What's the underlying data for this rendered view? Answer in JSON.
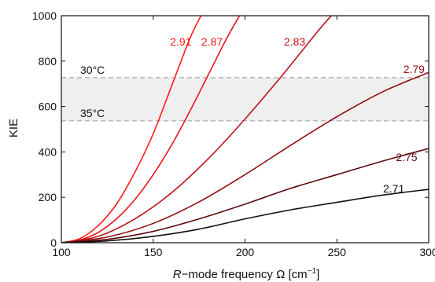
{
  "chart_data": {
    "type": "line",
    "xlabel_prefix": "R",
    "xlabel_main": "−mode frequency Ω [cm",
    "xlabel_sup": "−1",
    "xlabel_end": "]",
    "ylabel": "KIE",
    "xlim": [
      100,
      300
    ],
    "ylim": [
      0,
      1000
    ],
    "xticks": [
      100,
      150,
      200,
      250,
      300
    ],
    "yticks": [
      0,
      200,
      400,
      600,
      800,
      1000
    ],
    "grid": false,
    "band": {
      "from": 537,
      "to": 727,
      "color": "#efefef",
      "line_color": "#a8a8a8"
    },
    "reference_lines": [
      {
        "label": "30°C",
        "y": 727
      },
      {
        "label": "35°C",
        "y": 537
      }
    ],
    "series": [
      {
        "name": "2.91",
        "color": "#ff1a1a",
        "x": [
          100,
          110,
          120,
          130,
          140,
          150,
          160,
          170,
          176
        ],
        "values": [
          0,
          18,
          75,
          170,
          310,
          480,
          690,
          900,
          1000
        ]
      },
      {
        "name": "2.87",
        "color": "#e8141d",
        "x": [
          100,
          110,
          120,
          130,
          140,
          150,
          160,
          170,
          180,
          190,
          197
        ],
        "values": [
          0,
          12,
          45,
          105,
          190,
          300,
          430,
          580,
          740,
          900,
          1000
        ]
      },
      {
        "name": "2.83",
        "color": "#c0101a",
        "x": [
          100,
          120,
          140,
          160,
          180,
          200,
          220,
          240,
          247
        ],
        "values": [
          0,
          28,
          105,
          220,
          370,
          545,
          735,
          935,
          1000
        ]
      },
      {
        "name": "2.79",
        "color": "#8c0e12",
        "x": [
          100,
          125,
          150,
          175,
          200,
          225,
          250,
          275,
          300
        ],
        "values": [
          0,
          25,
          85,
          180,
          300,
          430,
          555,
          665,
          750
        ]
      },
      {
        "name": "2.75",
        "color": "#5c0a0e",
        "x": [
          100,
          125,
          150,
          175,
          200,
          225,
          250,
          275,
          300
        ],
        "values": [
          0,
          15,
          50,
          105,
          170,
          240,
          300,
          360,
          415
        ]
      },
      {
        "name": "2.71",
        "color": "#111111",
        "x": [
          100,
          125,
          150,
          175,
          200,
          225,
          250,
          275,
          300
        ],
        "values": [
          0,
          8,
          28,
          60,
          105,
          145,
          178,
          210,
          235
        ]
      }
    ]
  }
}
